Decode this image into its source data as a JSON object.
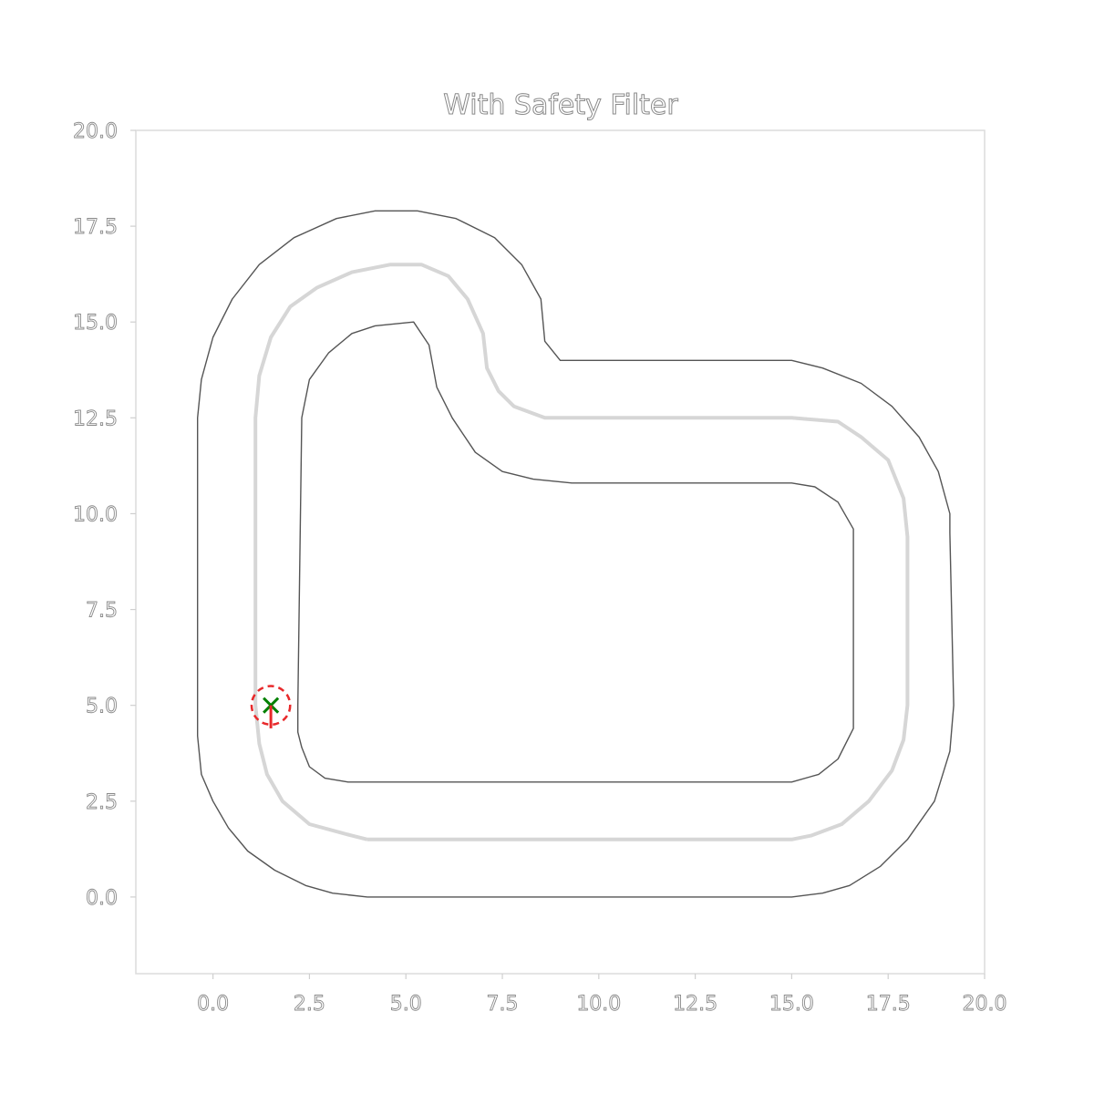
{
  "chart_data": {
    "type": "line",
    "title": "With Safety Filter",
    "xlabel": "",
    "ylabel": "",
    "xlim": [
      -2,
      20
    ],
    "ylim": [
      -2,
      20
    ],
    "xticks": [
      "0.0",
      "2.5",
      "5.0",
      "7.5",
      "10.0",
      "12.5",
      "15.0",
      "17.5",
      "20.0"
    ],
    "yticks": [
      "0.0",
      "2.5",
      "5.0",
      "7.5",
      "10.0",
      "12.5",
      "15.0",
      "17.5",
      "20.0"
    ],
    "grid": false,
    "legend": "none",
    "series": [
      {
        "role": "outer-boundary",
        "color": "#555555",
        "points": [
          [
            4,
            0
          ],
          [
            3.1,
            0.1
          ],
          [
            2.4,
            0.3
          ],
          [
            1.6,
            0.7
          ],
          [
            0.9,
            1.2
          ],
          [
            0.4,
            1.8
          ],
          [
            0,
            2.5
          ],
          [
            -0.3,
            3.2
          ],
          [
            -0.4,
            4.2
          ],
          [
            -0.4,
            5
          ],
          [
            -0.4,
            12.5
          ],
          [
            -0.3,
            13.5
          ],
          [
            0,
            14.6
          ],
          [
            0.5,
            15.6
          ],
          [
            1.2,
            16.5
          ],
          [
            2.1,
            17.2
          ],
          [
            3.2,
            17.7
          ],
          [
            4.2,
            17.9
          ],
          [
            5.3,
            17.9
          ],
          [
            6.3,
            17.7
          ],
          [
            7.3,
            17.2
          ],
          [
            8,
            16.5
          ],
          [
            8.5,
            15.6
          ],
          [
            8.6,
            14.5
          ],
          [
            9,
            14
          ],
          [
            15,
            14
          ],
          [
            15.8,
            13.8
          ],
          [
            16.8,
            13.4
          ],
          [
            17.6,
            12.8
          ],
          [
            18.3,
            12
          ],
          [
            18.8,
            11.1
          ],
          [
            19.1,
            10
          ],
          [
            19.1,
            9.5
          ],
          [
            19.2,
            5
          ],
          [
            19.1,
            3.8
          ],
          [
            18.7,
            2.5
          ],
          [
            18,
            1.5
          ],
          [
            17.3,
            0.8
          ],
          [
            16.5,
            0.3
          ],
          [
            15.8,
            0.1
          ],
          [
            15,
            0
          ],
          [
            4,
            0
          ]
        ]
      },
      {
        "role": "centerline",
        "color": "#d6d6d6",
        "points": [
          [
            4,
            1.5
          ],
          [
            3.6,
            1.6
          ],
          [
            2.5,
            1.9
          ],
          [
            1.8,
            2.5
          ],
          [
            1.4,
            3.2
          ],
          [
            1.2,
            4
          ],
          [
            1.1,
            5
          ],
          [
            1.1,
            12.5
          ],
          [
            1.2,
            13.6
          ],
          [
            1.5,
            14.6
          ],
          [
            2,
            15.4
          ],
          [
            2.7,
            15.9
          ],
          [
            3.6,
            16.3
          ],
          [
            4.6,
            16.5
          ],
          [
            5.4,
            16.5
          ],
          [
            6.1,
            16.2
          ],
          [
            6.6,
            15.6
          ],
          [
            7,
            14.7
          ],
          [
            7.1,
            13.8
          ],
          [
            7.4,
            13.2
          ],
          [
            7.8,
            12.8
          ],
          [
            8.6,
            12.5
          ],
          [
            9.4,
            12.5
          ],
          [
            15,
            12.5
          ],
          [
            16.2,
            12.4
          ],
          [
            16.8,
            12
          ],
          [
            17.5,
            11.4
          ],
          [
            17.9,
            10.4
          ],
          [
            18,
            9.4
          ],
          [
            18,
            5
          ],
          [
            17.9,
            4.1
          ],
          [
            17.6,
            3.3
          ],
          [
            17,
            2.5
          ],
          [
            16.3,
            1.9
          ],
          [
            15.5,
            1.6
          ],
          [
            15,
            1.5
          ],
          [
            4,
            1.5
          ]
        ]
      },
      {
        "role": "inner-boundary",
        "color": "#555555",
        "points": [
          [
            4,
            3
          ],
          [
            3.5,
            3
          ],
          [
            2.9,
            3.1
          ],
          [
            2.5,
            3.4
          ],
          [
            2.3,
            3.9
          ],
          [
            2.2,
            4.3
          ],
          [
            2.2,
            5
          ],
          [
            2.3,
            12.5
          ],
          [
            2.5,
            13.5
          ],
          [
            3,
            14.2
          ],
          [
            3.6,
            14.7
          ],
          [
            4.2,
            14.9
          ],
          [
            5.2,
            15
          ],
          [
            5.6,
            14.4
          ],
          [
            5.8,
            13.3
          ],
          [
            6.2,
            12.5
          ],
          [
            6.8,
            11.6
          ],
          [
            7.5,
            11.1
          ],
          [
            8.3,
            10.9
          ],
          [
            9.3,
            10.8
          ],
          [
            15,
            10.8
          ],
          [
            15.6,
            10.7
          ],
          [
            16.2,
            10.3
          ],
          [
            16.6,
            9.6
          ],
          [
            16.6,
            5
          ],
          [
            16.6,
            4.4
          ],
          [
            16.2,
            3.6
          ],
          [
            15.7,
            3.2
          ],
          [
            15,
            3
          ],
          [
            4,
            3
          ]
        ]
      }
    ],
    "markers": [
      {
        "type": "x",
        "x": 1.5,
        "y": 5,
        "color": "#008000"
      },
      {
        "type": "dashed-circle",
        "x": 1.5,
        "y": 5,
        "radius": 0.5,
        "color": "#e8292b"
      },
      {
        "type": "heading-arrow",
        "x1": 1.5,
        "y1": 5,
        "x2": 1.5,
        "y2": 4.4,
        "color": "#e8292b"
      }
    ]
  }
}
